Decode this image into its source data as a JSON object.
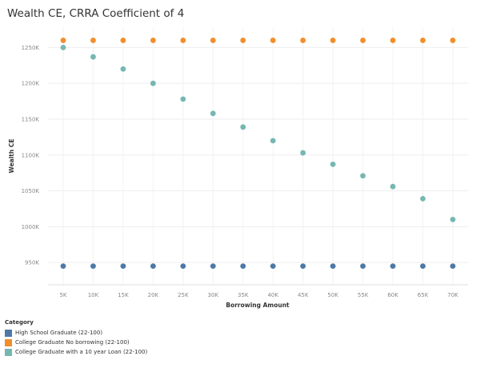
{
  "chart_data": {
    "type": "scatter",
    "title": "Wealth CE, CRRA Coefficient of 4",
    "xlabel": "Borrowing Amount",
    "ylabel": "Wealth CE",
    "categories": [
      "5K",
      "10K",
      "15K",
      "20K",
      "25K",
      "30K",
      "35K",
      "40K",
      "45K",
      "50K",
      "55K",
      "60K",
      "65K",
      "70K"
    ],
    "y_ticks": [
      950,
      1000,
      1050,
      1100,
      1150,
      1200,
      1250
    ],
    "y_tick_labels": [
      "950K",
      "1000K",
      "1050K",
      "1100K",
      "1150K",
      "1200K",
      "1250K"
    ],
    "ylim": [
      920,
      1275
    ],
    "grid": true,
    "legend_title": "Category",
    "legend_position": "bottom-left",
    "series": [
      {
        "name": "High School Graduate  (22-100)",
        "color": "#4e79a7",
        "values": [
          945,
          945,
          945,
          945,
          945,
          945,
          945,
          945,
          945,
          945,
          945,
          945,
          945,
          945
        ]
      },
      {
        "name": "College Graduate  No borrowing  (22-100)",
        "color": "#f28e2b",
        "values": [
          1260,
          1260,
          1260,
          1260,
          1260,
          1260,
          1260,
          1260,
          1260,
          1260,
          1260,
          1260,
          1260,
          1260
        ]
      },
      {
        "name": "College Graduate with a 10 year Loan  (22-100)",
        "color": "#76b7b2",
        "values": [
          1250,
          1237,
          1220,
          1200,
          1178,
          1158,
          1139,
          1120,
          1103,
          1087,
          1071,
          1056,
          1039,
          1010
        ]
      }
    ]
  }
}
